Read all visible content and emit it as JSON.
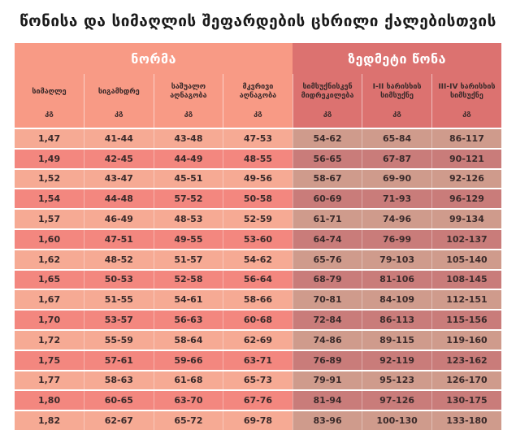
{
  "title": "წონისა და სიმაღლის შეფარდების ცხრილი ქალებისთვის",
  "groups": {
    "norm": "ნორმა",
    "excess": "ზედმეტი წონა"
  },
  "columns": [
    "სიმაღლე",
    "სიგამხდრე",
    "საშუალო აღნაგობა",
    "მკვრივი აღნაგობა",
    "სიმსუქნისკენ მიდრეკილება",
    "I-II ხარისხის სიმსუქნე",
    "III-IV ხარისხის სიმსუქნე"
  ],
  "units": [
    "კგ",
    "კგ",
    "კგ",
    "კგ",
    "კგ",
    "კგ",
    "კგ"
  ],
  "rows": [
    [
      "1,47",
      "41-44",
      "43-48",
      "47-53",
      "54-62",
      "65-84",
      "86-117"
    ],
    [
      "1,49",
      "42-45",
      "44-49",
      "48-55",
      "56-65",
      "67-87",
      "90-121"
    ],
    [
      "1,52",
      "43-47",
      "45-51",
      "49-56",
      "58-67",
      "69-90",
      "92-126"
    ],
    [
      "1,54",
      "44-48",
      "57-52",
      "50-58",
      "60-69",
      "71-93",
      "96-129"
    ],
    [
      "1,57",
      "46-49",
      "48-53",
      "52-59",
      "61-71",
      "74-96",
      "99-134"
    ],
    [
      "1,60",
      "47-51",
      "49-55",
      "53-60",
      "64-74",
      "76-99",
      "102-137"
    ],
    [
      "1,62",
      "48-52",
      "51-57",
      "54-62",
      "65-76",
      "79-103",
      "105-140"
    ],
    [
      "1,65",
      "50-53",
      "52-58",
      "56-64",
      "68-79",
      "81-106",
      "108-145"
    ],
    [
      "1,67",
      "51-55",
      "54-61",
      "58-66",
      "70-81",
      "84-109",
      "112-151"
    ],
    [
      "1,70",
      "53-57",
      "56-63",
      "60-68",
      "72-84",
      "86-113",
      "115-156"
    ],
    [
      "1,72",
      "55-59",
      "58-64",
      "62-69",
      "74-86",
      "89-115",
      "119-160"
    ],
    [
      "1,75",
      "57-61",
      "59-66",
      "63-71",
      "76-89",
      "92-119",
      "123-162"
    ],
    [
      "1,77",
      "58-63",
      "61-68",
      "65-73",
      "79-91",
      "95-123",
      "126-170"
    ],
    [
      "1,80",
      "60-65",
      "63-70",
      "67-76",
      "81-94",
      "97-126",
      "130-175"
    ],
    [
      "1,82",
      "62-67",
      "65-72",
      "69-78",
      "83-96",
      "100-130",
      "133-180"
    ]
  ]
}
